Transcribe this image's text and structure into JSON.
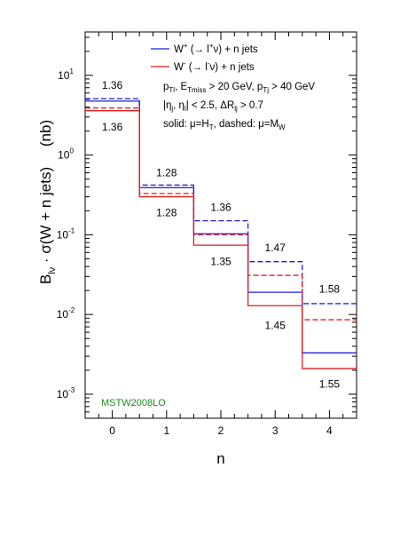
{
  "chart_data": {
    "type": "line",
    "step": true,
    "x_scale": "linear",
    "y_scale": "log",
    "xlabel": "n",
    "ylabel_parts": {
      "b": "B",
      "b_sub": "lν",
      "mid": " · σ(W + n jets)",
      "unit": "(nb)"
    },
    "xlim": [
      -0.5,
      4.5
    ],
    "ylim": [
      0.0005,
      35
    ],
    "x_ticks": [
      0,
      1,
      2,
      3,
      4
    ],
    "x_tick_labels": [
      "0",
      "1",
      "2",
      "3",
      "4"
    ],
    "y_ticks": [
      0.001,
      0.01,
      0.1,
      1,
      10
    ],
    "y_tick_labels": [
      {
        "base": "10",
        "exp": "-3"
      },
      {
        "base": "10",
        "exp": "-2"
      },
      {
        "base": "10",
        "exp": "-1"
      },
      {
        "base": "10",
        "exp": "0"
      },
      {
        "base": "10",
        "exp": "1"
      }
    ],
    "bins": [
      [
        -0.5,
        0.5
      ],
      [
        0.5,
        1.5
      ],
      [
        1.5,
        2.5
      ],
      [
        2.5,
        3.5
      ],
      [
        3.5,
        4.5
      ]
    ],
    "series": [
      {
        "label_key": "wplus",
        "scale": "mu=HT",
        "style": "solid",
        "color": "#1f1fe0",
        "values": [
          4.75,
          0.39,
          0.103,
          0.019,
          0.0033
        ]
      },
      {
        "label_key": "wplus",
        "scale": "mu=MW",
        "style": "dashed",
        "color": "#1f1fe0",
        "values": [
          5.1,
          0.42,
          0.15,
          0.046,
          0.0137
        ]
      },
      {
        "label_key": "wminus",
        "scale": "mu=HT",
        "style": "solid",
        "color": "#e01f1f",
        "values": [
          3.6,
          0.3,
          0.074,
          0.0129,
          0.0021
        ]
      },
      {
        "label_key": "wminus",
        "scale": "mu=MW",
        "style": "dashed",
        "color": "#e01f1f",
        "values": [
          3.9,
          0.33,
          0.1,
          0.031,
          0.0086
        ]
      }
    ],
    "ratio_annotations": [
      {
        "bin": 0,
        "text": "1.36",
        "y": 7.5
      },
      {
        "bin": 0,
        "text": "1.36",
        "y": 2.25
      },
      {
        "bin": 1,
        "text": "1.28",
        "y": 0.6
      },
      {
        "bin": 1,
        "text": "1.28",
        "y": 0.19
      },
      {
        "bin": 2,
        "text": "1.36",
        "y": 0.22
      },
      {
        "bin": 2,
        "text": "1.35",
        "y": 0.046
      },
      {
        "bin": 3,
        "text": "1.47",
        "y": 0.069
      },
      {
        "bin": 3,
        "text": "1.45",
        "y": 0.0073
      },
      {
        "bin": 4,
        "text": "1.58",
        "y": 0.021
      },
      {
        "bin": 4,
        "text": "1.55",
        "y": 0.00135
      }
    ],
    "legend": {
      "position": "top-right",
      "wplus": {
        "w": "W",
        "sup1": "+",
        "mid": " (→ l",
        "sup2": "+",
        "tail": "ν) + n jets"
      },
      "wminus": {
        "w": "W",
        "sup1": "-",
        "mid": " (→ l",
        "sup2": "-",
        "tail": "ν) + n jets"
      }
    },
    "cuts": {
      "line1": [
        {
          "t": "p"
        },
        {
          "t": "Tl",
          "sub": true
        },
        {
          "t": ", E"
        },
        {
          "t": "Tmiss",
          "sub": true
        },
        {
          "t": " > 20 GeV, p"
        },
        {
          "t": "Tj",
          "sub": true
        },
        {
          "t": " > 40 GeV"
        }
      ],
      "line2": [
        {
          "t": "|η"
        },
        {
          "t": "j",
          "sub": true
        },
        {
          "t": ", η"
        },
        {
          "t": "l",
          "sub": true
        },
        {
          "t": "| < 2.5,   ΔR"
        },
        {
          "t": "lj",
          "sub": true
        },
        {
          "t": " > 0.7"
        }
      ],
      "line3": [
        {
          "t": "solid: μ=H"
        },
        {
          "t": "T",
          "sub": true
        },
        {
          "t": ", dashed: μ=M"
        },
        {
          "t": "W",
          "sub": true
        }
      ]
    },
    "pdf_label": {
      "text": "MSTW2008LO",
      "color": "#1f8a1f"
    }
  }
}
